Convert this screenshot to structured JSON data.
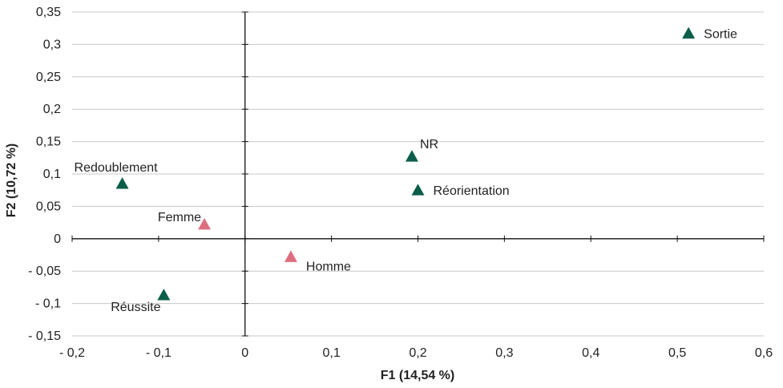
{
  "chart_data": {
    "type": "scatter",
    "title": "",
    "xlabel": "F1 (14,54 %)",
    "ylabel": "F2 (10,72 %)",
    "xlim": [
      -0.2,
      0.6
    ],
    "ylim": [
      -0.15,
      0.35
    ],
    "x_ticks": [
      -0.2,
      -0.1,
      0,
      0.1,
      0.2,
      0.3,
      0.4,
      0.5,
      0.6
    ],
    "x_tick_labels": [
      "- 0,2",
      "- 0,1",
      "0",
      "0,1",
      "0,2",
      "0,3",
      "0,4",
      "0,5",
      "0,6"
    ],
    "y_ticks": [
      0.35,
      0.3,
      0.25,
      0.2,
      0.15,
      0.1,
      0.05,
      0,
      -0.05,
      -0.1,
      -0.15
    ],
    "y_tick_labels": [
      "0,35",
      "0,3",
      "0,25",
      "0,2",
      "0,15",
      "0,1",
      "0,05",
      "0",
      "- 0,05",
      "- 0,1",
      "- 0,15"
    ],
    "grid": "horizontal",
    "marker": "triangle",
    "colors": {
      "green": "#0b5e4a",
      "pink": "#dd6e80"
    },
    "points": [
      {
        "label": "Sortie",
        "x": 0.513,
        "y": 0.317,
        "color": "green",
        "label_pos": "right"
      },
      {
        "label": "NR",
        "x": 0.193,
        "y": 0.127,
        "color": "green",
        "label_pos": "above-right"
      },
      {
        "label": "Réorientation",
        "x": 0.2,
        "y": 0.075,
        "color": "green",
        "label_pos": "right"
      },
      {
        "label": "Redoublement",
        "x": -0.142,
        "y": 0.085,
        "color": "green",
        "label_pos": "above"
      },
      {
        "label": "Femme",
        "x": -0.047,
        "y": 0.022,
        "color": "pink",
        "label_pos": "above-left"
      },
      {
        "label": "Homme",
        "x": 0.053,
        "y": -0.028,
        "color": "pink",
        "label_pos": "below-right"
      },
      {
        "label": "Réussite",
        "x": -0.094,
        "y": -0.087,
        "color": "green",
        "label_pos": "below"
      }
    ]
  }
}
